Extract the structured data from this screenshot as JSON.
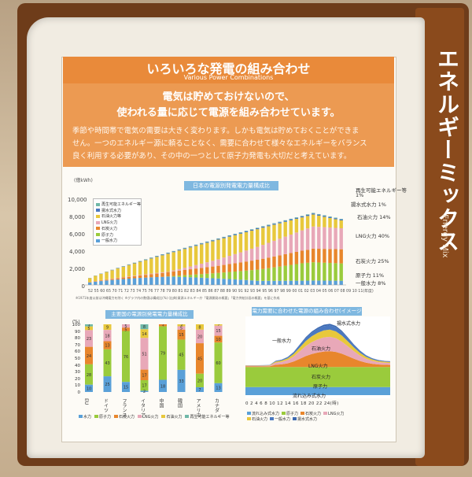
{
  "sidebar": {
    "title": "エネルギーミックス",
    "subtitle": "Energy Mix"
  },
  "header": {
    "title_jp": "いろいろな発電の組み合わせ",
    "title_en": "Various Power Combinations"
  },
  "lead": {
    "line1": "電気は貯めておけないので、",
    "line2": "使われる量に応じて電源を組み合わせています。"
  },
  "body": {
    "line1": "季節や時間帯で電気の需要は大きく変わります。しかも電気は貯めておくことができま",
    "line2": "せん。一つのエネルギー源に頼ることなく、需要に合わせて様々なエネルギーをバランス",
    "line3": "良く利用する必要があり、その中の一つとして原子力発電も大切だと考えています。"
  },
  "chart1": {
    "title": "日本の電源別発電電力量構成比",
    "unit": "(億kWh)",
    "yticks": [
      "10,000",
      "8,000",
      "6,000",
      "4,000",
      "2,000",
      "0"
    ],
    "legend": [
      "再生可能エネルギー等",
      "揚水式水力",
      "石油火力等",
      "LNG火力",
      "石炭火力",
      "原子力",
      "一般水力"
    ],
    "right_labels": [
      "再生可能エネルギー等",
      "1%",
      "揚水式水力 1%",
      "石油火力 14%",
      "LNG火力 40%",
      "石炭火力 25%",
      "原子力 11%",
      "一般水力 8%"
    ],
    "xaxis": "52 55 60 65 70 71 72 73 74 75 76 77 78 79 80 81 82 83 84 85 86 87 88 89 90 91 92 93 94 95 96 97 98 99 00 01 02 03 04 05 06 07 08 09 10 11(年度)",
    "note": "※1971年度以前は沖縄電力を除く  ※グラフ内の数値は構成比(%)  (出典)資源エネルギー庁「電源開発の概要」「電力供給計画の概要」を基に作成"
  },
  "chart2": {
    "title": "主要国の電源別発電電力量構成比",
    "unit": "(%)",
    "yticks": [
      "100",
      "90",
      "80",
      "70",
      "60",
      "50",
      "40",
      "30",
      "20",
      "10",
      "0"
    ],
    "countries": [
      "EU",
      "ドイツ",
      "フランス",
      "イタリア",
      "中国",
      "韓国",
      "アメリカ",
      "カナダ"
    ],
    "values": [
      [
        "3",
        "5",
        "23",
        "24",
        "28",
        "10"
      ],
      [
        "9",
        "18",
        "13",
        "43",
        "25"
      ],
      [
        "5",
        "5",
        "76",
        "15"
      ],
      [
        "8",
        "14",
        "51",
        "17",
        "17",
        "2"
      ],
      [
        "3",
        "79",
        "18"
      ],
      [
        "3",
        "5",
        "15",
        "45",
        "33"
      ],
      [
        "8",
        "20",
        "45",
        "20",
        "7"
      ],
      [
        "2",
        "15",
        "10",
        "60",
        "13"
      ]
    ],
    "legend": [
      "水力",
      "原子力",
      "石炭火力",
      "LNG火力",
      "石油火力",
      "再生可能エネルギー等"
    ]
  },
  "chart3": {
    "title": "電力需要に合わせた電源の組み合わせ(イメージ図)",
    "area_labels": [
      "揚水式水力",
      "一般水力",
      "石油火力",
      "LNG火力",
      "石炭火力",
      "原子力",
      "流れ込み式水力"
    ],
    "xticks": [
      "0",
      "2",
      "4",
      "6",
      "8",
      "10",
      "12",
      "14",
      "16",
      "18",
      "20",
      "22",
      "24(時)"
    ],
    "legend": [
      "流れ込み式水力",
      "原子力",
      "石炭火力",
      "LNG火力",
      "石油火力",
      "一般水力",
      "揚水式水力"
    ]
  },
  "colors": {
    "hydro": "#5aa0d8",
    "nuclear": "#9acb3c",
    "coal": "#e8862c",
    "lng": "#e8a8b8",
    "oil": "#e8c83c",
    "pumped": "#4a78c0",
    "renew": "#70b8a8",
    "accent": "#e98a3a"
  }
}
